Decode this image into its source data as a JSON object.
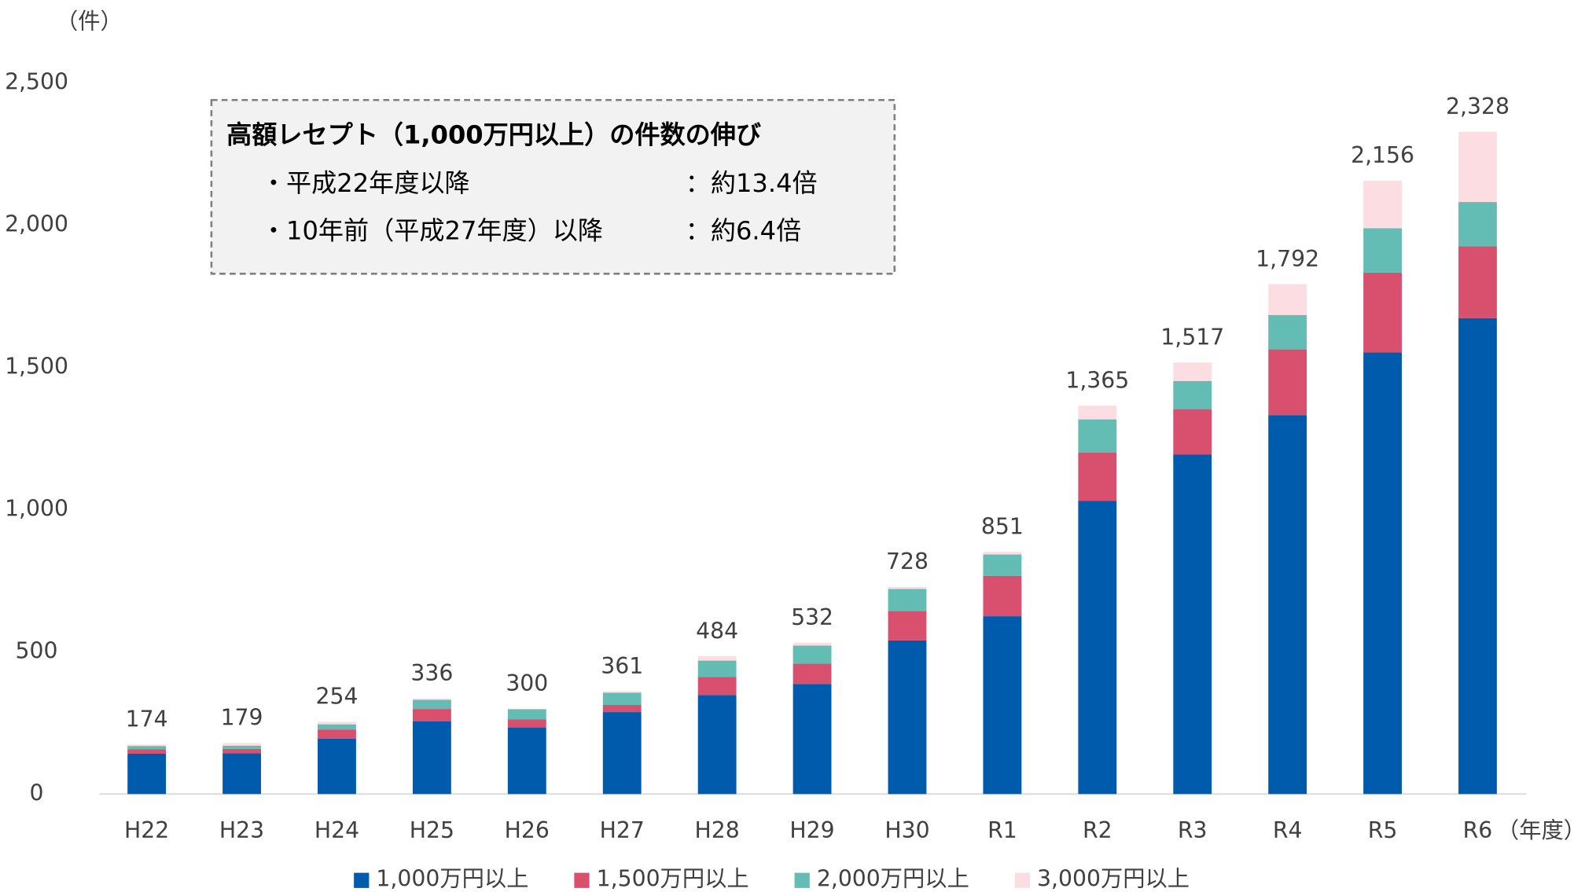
{
  "chart_data": {
    "type": "stacked_bar",
    "y_label": "（件）",
    "x_label": "（年度）",
    "annotation": {
      "title": "高額レセプト（1,000万円以上）の件数の伸び",
      "lines": [
        [
          "・平成22年度以降",
          "：約13.4倍"
        ],
        [
          "・10年前（平成27年度）以降",
          "：約6.4倍"
        ]
      ]
    },
    "categories": [
      "H22",
      "H23",
      "H24",
      "H25",
      "H26",
      "H27",
      "H28",
      "H29",
      "H30",
      "R1",
      "R2",
      "R3",
      "R4",
      "R5",
      "R6"
    ],
    "series": [
      {
        "name": "1,000万円以上",
        "color": "#005bac",
        "values": [
          142,
          143,
          195,
          256,
          234,
          288,
          348,
          387,
          540,
          625,
          1030,
          1193,
          1332,
          1552,
          1673
        ]
      },
      {
        "name": "1,500万円以上",
        "color": "#d9506e",
        "values": [
          15,
          16,
          32,
          43,
          28,
          25,
          64,
          71,
          103,
          142,
          170,
          160,
          231,
          281,
          252
        ]
      },
      {
        "name": "2,000万円以上",
        "color": "#63bdb5",
        "values": [
          12,
          11,
          18,
          32,
          36,
          43,
          57,
          64,
          78,
          75,
          117,
          99,
          121,
          156,
          156
        ]
      },
      {
        "name": "3,000万円以上",
        "color": "#fcdde2",
        "values": [
          5,
          9,
          9,
          5,
          2,
          5,
          15,
          10,
          7,
          9,
          48,
          65,
          108,
          167,
          247
        ]
      }
    ],
    "totals": [
      174,
      179,
      254,
      336,
      300,
      361,
      484,
      532,
      728,
      851,
      1365,
      1517,
      1792,
      2156,
      2328
    ],
    "total_labels": [
      "174",
      "179",
      "254",
      "336",
      "300",
      "361",
      "484",
      "532",
      "728",
      "851",
      "1,365",
      "1,517",
      "1,792",
      "2,156",
      "2,328"
    ],
    "ylim": [
      0,
      2500
    ],
    "yticks": [
      0,
      500,
      {
        "value": 1000,
        "label": "1,000"
      },
      {
        "value": 1500,
        "label": "1,500"
      },
      {
        "value": 2000,
        "label": "2,000"
      },
      {
        "value": 2500,
        "label": "2,500"
      }
    ]
  }
}
